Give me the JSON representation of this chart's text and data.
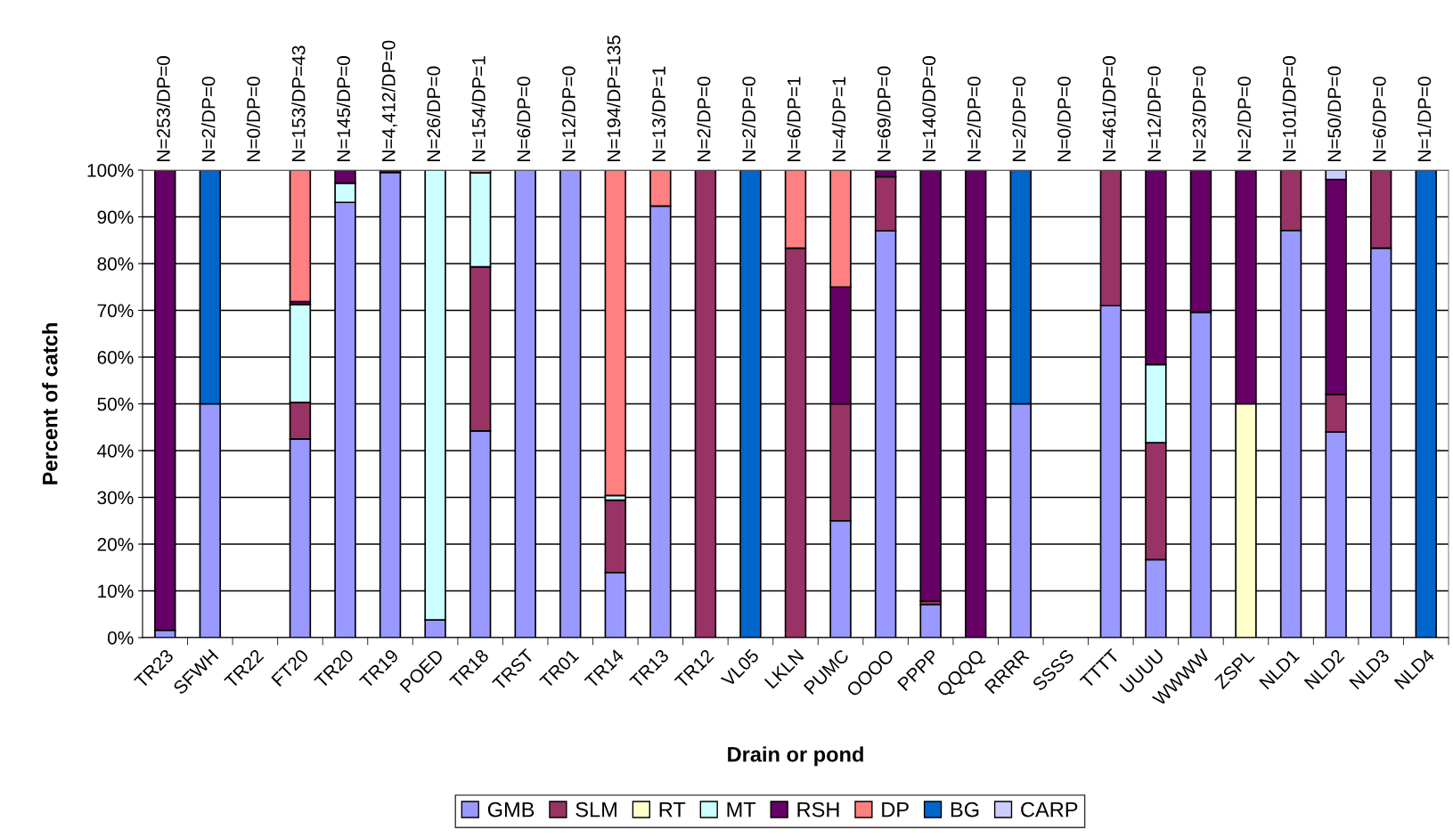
{
  "chart_data": {
    "type": "bar",
    "stacked": true,
    "xlabel": "Drain or pond",
    "ylabel": "Percent of catch",
    "categories": [
      "TR23",
      "SFWH",
      "TR22",
      "FT20",
      "TR20",
      "TR19",
      "POED",
      "TR18",
      "TRST",
      "TR01",
      "TR14",
      "TR13",
      "TR12",
      "VL05",
      "LKLN",
      "PUMC",
      "OOOO",
      "PPPP",
      "QQQQ",
      "RRRR",
      "SSSS",
      "TTTT",
      "UUUU",
      "WWWW",
      "ZSPL",
      "NLD1",
      "NLD2",
      "NLD3",
      "NLD4"
    ],
    "series": [
      {
        "name": "GMB",
        "color": "#9999ff",
        "values": [
          1.6,
          50,
          0,
          42.5,
          93.1,
          99.5,
          3.8,
          44.2,
          100,
          100,
          13.9,
          92.3,
          0,
          0,
          0,
          25,
          87,
          7.1,
          0,
          50,
          0,
          71,
          16.7,
          69.6,
          0,
          87.1,
          44,
          83.3,
          0
        ]
      },
      {
        "name": "SLM",
        "color": "#993366",
        "values": [
          0,
          0,
          0,
          7.8,
          0,
          0,
          0,
          35.1,
          0,
          0,
          15.5,
          0,
          100,
          0,
          83.3,
          25,
          11.6,
          0.7,
          0,
          0,
          0,
          29,
          25,
          0,
          0,
          12.9,
          8,
          16.7,
          0
        ]
      },
      {
        "name": "RT",
        "color": "#ffffcc",
        "values": [
          0,
          0,
          0,
          0,
          0,
          0,
          0,
          0,
          0,
          0,
          0,
          0,
          0,
          0,
          0,
          0,
          0,
          0,
          0,
          0,
          0,
          0,
          0,
          0,
          50,
          0,
          0,
          0,
          0
        ]
      },
      {
        "name": "MT",
        "color": "#ccffff",
        "values": [
          0,
          0,
          0,
          20.9,
          4.1,
          0,
          96.2,
          20.1,
          0,
          0,
          1,
          0,
          0,
          0,
          0,
          0,
          0,
          0,
          0,
          0,
          0,
          0,
          16.7,
          0,
          0,
          0,
          0,
          0,
          0
        ]
      },
      {
        "name": "RSH",
        "color": "#660066",
        "values": [
          98.4,
          0,
          0,
          0.7,
          2.8,
          0.5,
          0,
          0,
          0,
          0,
          0,
          0,
          0,
          0,
          0,
          25,
          1.4,
          92.2,
          100,
          0,
          0,
          0,
          41.6,
          30.4,
          50,
          0,
          46,
          0,
          0
        ]
      },
      {
        "name": "DP",
        "color": "#ff8080",
        "values": [
          0,
          0,
          0,
          28.1,
          0,
          0,
          0,
          0.6,
          0,
          0,
          69.6,
          7.7,
          0,
          0,
          16.7,
          25,
          0,
          0,
          0,
          0,
          0,
          0,
          0,
          0,
          0,
          0,
          0,
          0,
          0
        ]
      },
      {
        "name": "BG",
        "color": "#0066cc",
        "values": [
          0,
          50,
          0,
          0,
          0,
          0,
          0,
          0,
          0,
          0,
          0,
          0,
          0,
          100,
          0,
          0,
          0,
          0,
          0,
          50,
          0,
          0,
          0,
          0,
          0,
          0,
          0,
          0,
          100
        ]
      },
      {
        "name": "CARP",
        "color": "#ccccff",
        "values": [
          0,
          0,
          0,
          0,
          0,
          0,
          0,
          0,
          0,
          0,
          0,
          0,
          0,
          0,
          0,
          0,
          0,
          0,
          0,
          0,
          0,
          0,
          0,
          0,
          0,
          0,
          2,
          0,
          0
        ]
      }
    ],
    "ylim": [
      0,
      100
    ],
    "yticks": [
      {
        "value": 0,
        "label": "0%"
      },
      {
        "value": 10,
        "label": "10%"
      },
      {
        "value": 20,
        "label": "20%"
      },
      {
        "value": 30,
        "label": "30%"
      },
      {
        "value": 40,
        "label": "40%"
      },
      {
        "value": 50,
        "label": "50%"
      },
      {
        "value": 60,
        "label": "60%"
      },
      {
        "value": 70,
        "label": "70%"
      },
      {
        "value": 80,
        "label": "80%"
      },
      {
        "value": 90,
        "label": "90%"
      },
      {
        "value": 100,
        "label": "100%"
      }
    ],
    "grid": "y",
    "legend": "bottom",
    "annotations": [
      "N=253/DP=0",
      "N=2/DP=0",
      "N=0/DP=0",
      "N=153/DP=43",
      "N=145/DP=0",
      "N=4,412/DP=0",
      "N=26/DP=0",
      "N=154/DP=1",
      "N=6/DP=0",
      "N=12/DP=0",
      "N=194/DP=135",
      "N=13/DP=1",
      "N=2/DP=0",
      "N=2/DP=0",
      "N=6/DP=1",
      "N=4/DP=1",
      "N=69/DP=0",
      "N=140/DP=0",
      "N=2/DP=0",
      "N=2/DP=0",
      "N=0/DP=0",
      "N=461/DP=0",
      "N=12/DP=0",
      "N=23/DP=0",
      "N=2/DP=0",
      "N=101/DP=0",
      "N=50/DP=0",
      "N=6/DP=0",
      "N=1/DP=0"
    ]
  }
}
